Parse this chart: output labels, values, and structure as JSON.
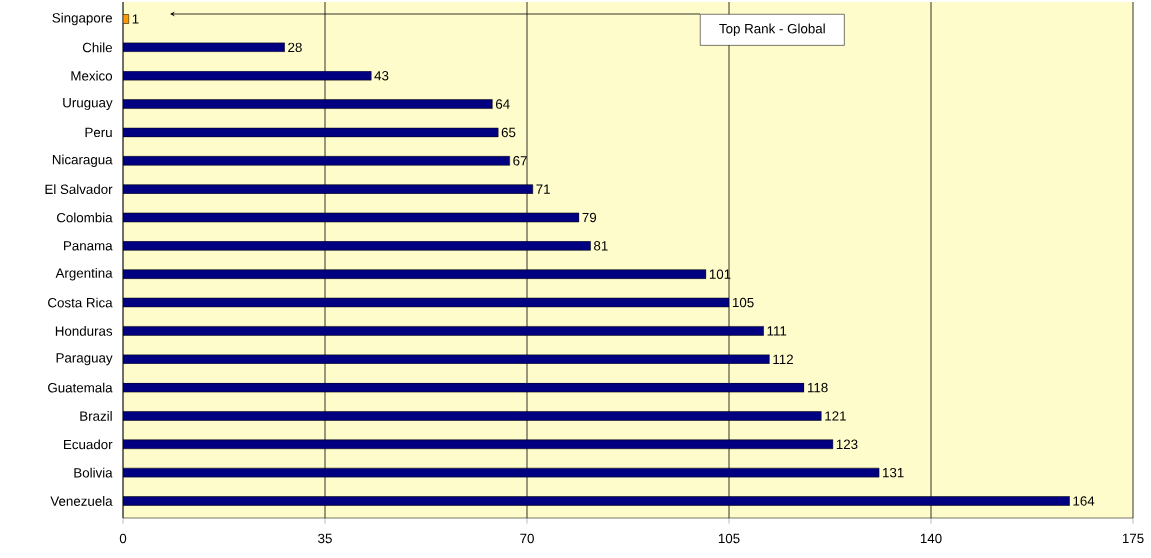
{
  "chart_data": {
    "type": "bar",
    "orientation": "horizontal",
    "categories": [
      "Singapore",
      "Chile",
      "Mexico",
      "Uruguay",
      "Peru",
      "Nicaragua",
      "El Salvador",
      "Colombia",
      "Panama",
      "Argentina",
      "Costa Rica",
      "Honduras",
      "Paraguay",
      "Guatemala",
      "Brazil",
      "Ecuador",
      "Bolivia",
      "Venezuela"
    ],
    "values": [
      1,
      28,
      43,
      64,
      65,
      67,
      71,
      79,
      81,
      101,
      105,
      111,
      112,
      118,
      121,
      123,
      131,
      164
    ],
    "colors": [
      "#ff9900",
      "#000080",
      "#000080",
      "#000080",
      "#000080",
      "#000080",
      "#000080",
      "#000080",
      "#000080",
      "#000080",
      "#000080",
      "#000080",
      "#000080",
      "#000080",
      "#000080",
      "#000080",
      "#000080",
      "#000080"
    ],
    "xlim": [
      0,
      175
    ],
    "xticks": [
      0,
      35,
      70,
      105,
      140,
      175
    ],
    "grid": "x",
    "data_labels": true,
    "annotations": [
      "Top Rank - Global"
    ]
  }
}
